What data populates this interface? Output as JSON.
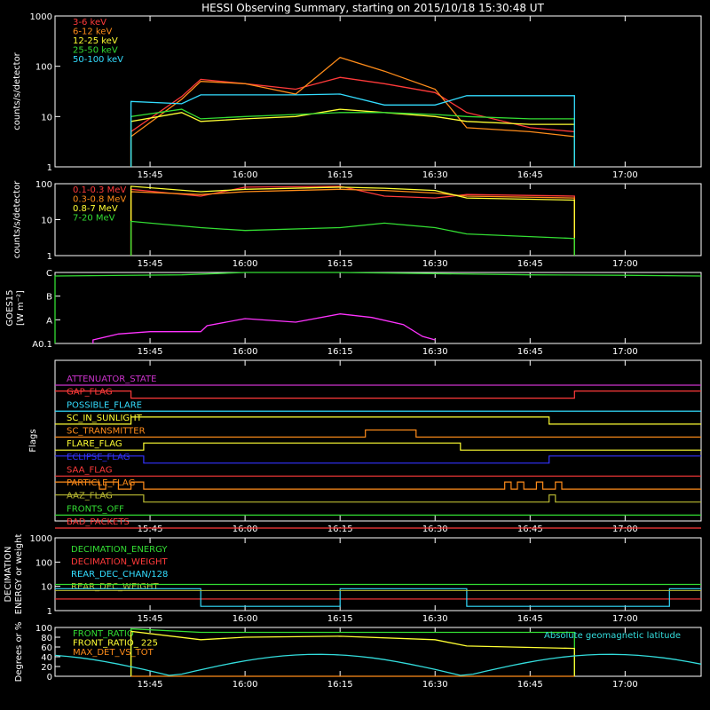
{
  "title": "HESSI Observing Summary, starting on 2015/10/18 15:30:48 UT",
  "chart_data": [
    {
      "id": "lightcurves",
      "type": "line",
      "ylabel": "counts/s/detector",
      "yscale": "log",
      "ylim": [
        1,
        1000
      ],
      "ytick_labels": [
        "1",
        "10",
        "100",
        "1000"
      ],
      "xtick_labels": [
        "15:45",
        "16:00",
        "16:15",
        "16:30",
        "16:45",
        "17:00"
      ],
      "series": [
        {
          "name": "3-6 keV",
          "color": "#ff3a3a",
          "x": [
            "15:42",
            "15:50",
            "15:53",
            "16:00",
            "16:08",
            "16:15",
            "16:22",
            "16:30",
            "16:35",
            "16:45",
            "16:52"
          ],
          "y": [
            5,
            25,
            55,
            45,
            35,
            60,
            45,
            30,
            12,
            6,
            5
          ]
        },
        {
          "name": "6-12 keV",
          "color": "#ff8c1a",
          "x": [
            "15:42",
            "15:50",
            "15:53",
            "16:00",
            "16:08",
            "16:15",
            "16:22",
            "16:30",
            "16:35",
            "16:45",
            "16:52"
          ],
          "y": [
            4,
            22,
            50,
            45,
            28,
            150,
            80,
            35,
            6,
            5,
            4
          ]
        },
        {
          "name": "12-25 keV",
          "color": "#ffff33",
          "x": [
            "15:42",
            "15:50",
            "15:53",
            "16:00",
            "16:08",
            "16:15",
            "16:22",
            "16:30",
            "16:35",
            "16:45",
            "16:52"
          ],
          "y": [
            8,
            12,
            8,
            9,
            10,
            14,
            12,
            10,
            8,
            7,
            7
          ]
        },
        {
          "name": "25-50 keV",
          "color": "#33dd33",
          "x": [
            "15:42",
            "15:50",
            "15:53",
            "16:00",
            "16:08",
            "16:15",
            "16:22",
            "16:30",
            "16:35",
            "16:45",
            "16:52"
          ],
          "y": [
            10,
            14,
            9,
            10,
            11,
            12,
            12,
            11,
            10,
            9,
            9
          ]
        },
        {
          "name": "50-100 keV",
          "color": "#33ddff",
          "x": [
            "15:42",
            "15:50",
            "15:53",
            "16:00",
            "16:08",
            "16:15",
            "16:22",
            "16:30",
            "16:35",
            "16:45",
            "16:52"
          ],
          "y": [
            20,
            18,
            27,
            27,
            27,
            28,
            17,
            17,
            26,
            26,
            26
          ]
        }
      ]
    },
    {
      "id": "mev",
      "type": "line",
      "ylabel": "counts/s/detector",
      "yscale": "log",
      "ylim": [
        1,
        100
      ],
      "ytick_labels": [
        "1",
        "10",
        "100"
      ],
      "xtick_labels": [
        "15:45",
        "16:00",
        "16:15",
        "16:30",
        "16:45",
        "17:00"
      ],
      "series": [
        {
          "name": "0.1-0.3 MeV",
          "color": "#ff3a3a",
          "x": [
            "15:42",
            "15:53",
            "16:00",
            "16:15",
            "16:22",
            "16:30",
            "16:35",
            "16:52"
          ],
          "y": [
            70,
            45,
            80,
            85,
            45,
            40,
            50,
            45
          ]
        },
        {
          "name": "0.3-0.8 MeV",
          "color": "#ff8c1a",
          "x": [
            "15:42",
            "15:53",
            "16:00",
            "16:15",
            "16:22",
            "16:30",
            "16:35",
            "16:52"
          ],
          "y": [
            60,
            50,
            60,
            70,
            65,
            55,
            45,
            40
          ]
        },
        {
          "name": "0.8-7 MeV",
          "color": "#ffff33",
          "x": [
            "15:42",
            "15:53",
            "16:00",
            "16:15",
            "16:22",
            "16:30",
            "16:35",
            "16:52"
          ],
          "y": [
            85,
            60,
            70,
            80,
            75,
            65,
            40,
            35
          ]
        },
        {
          "name": "7-20 MeV",
          "color": "#33dd33",
          "x": [
            "15:42",
            "15:53",
            "16:00",
            "16:15",
            "16:22",
            "16:30",
            "16:35",
            "16:52"
          ],
          "y": [
            9,
            6,
            5,
            6,
            8,
            6,
            4,
            3
          ]
        }
      ]
    },
    {
      "id": "goes",
      "type": "line",
      "ylabel": "GOES15",
      "ylabel2": "[W m⁻²]",
      "ytick_labels": [
        "A0.1",
        "A",
        "B",
        "C"
      ],
      "ylim": [
        0,
        3
      ],
      "xtick_labels": [
        "15:45",
        "16:00",
        "16:15",
        "16:30",
        "16:45",
        "17:00"
      ],
      "series": [
        {
          "name": "low channel",
          "color": "#33dd33",
          "x": [
            "15:30",
            "15:50",
            "16:00",
            "16:15",
            "16:30",
            "16:45",
            "17:00",
            "17:12"
          ],
          "y": [
            2.85,
            2.9,
            3.0,
            3.0,
            2.95,
            2.9,
            2.88,
            2.85
          ]
        },
        {
          "name": "high channel",
          "color": "#ff33ff",
          "x": [
            "15:36",
            "15:40",
            "15:45",
            "15:53",
            "15:54",
            "16:00",
            "16:08",
            "16:15",
            "16:20",
            "16:25",
            "16:28",
            "16:30"
          ],
          "y": [
            0.15,
            0.4,
            0.5,
            0.5,
            0.75,
            1.05,
            0.9,
            1.25,
            1.1,
            0.8,
            0.3,
            0.15
          ]
        }
      ]
    },
    {
      "id": "flags",
      "type": "line",
      "ylabel": "Flags",
      "xtick_labels": [
        "15:45",
        "16:00",
        "16:15",
        "16:30",
        "16:45",
        "17:00"
      ],
      "series": [
        {
          "name": "ATTENUATOR_STATE",
          "color": "#cc33cc"
        },
        {
          "name": "GAP_FLAG",
          "color": "#ff3a3a"
        },
        {
          "name": "POSSIBLE_FLARE",
          "color": "#33ddff"
        },
        {
          "name": "SC_IN_SUNLIGHT",
          "color": "#ffff33"
        },
        {
          "name": "SC_TRANSMITTER",
          "color": "#ff8c1a"
        },
        {
          "name": "FLARE_FLAG",
          "color": "#ffff33"
        },
        {
          "name": "ECLIPSE_FLAG",
          "color": "#3333ff"
        },
        {
          "name": "SAA_FLAG",
          "color": "#ff3a3a"
        },
        {
          "name": "PARTICLE_FLAG",
          "color": "#ff8c1a"
        },
        {
          "name": "AAZ_FLAG",
          "color": "#bbbb33"
        },
        {
          "name": "FRONTS_OFF",
          "color": "#33dd33"
        },
        {
          "name": "BAD_PACKETS",
          "color": "#ff3a3a"
        }
      ]
    },
    {
      "id": "decimation",
      "type": "line",
      "ylabel": "DECIMATION",
      "ylabel2": "ENERGY or weight",
      "yscale": "log",
      "ylim": [
        1,
        1000
      ],
      "ytick_labels": [
        "1",
        "10",
        "100",
        "1000"
      ],
      "xtick_labels": [
        "15:45",
        "16:00",
        "16:15",
        "16:30",
        "16:45",
        "17:00"
      ],
      "series": [
        {
          "name": "DECIMATION_ENERGY",
          "color": "#33dd33"
        },
        {
          "name": "DECIMATION_WEIGHT",
          "color": "#ff3a3a"
        },
        {
          "name": "REAR_DEC_CHAN/128",
          "color": "#33ddff"
        },
        {
          "name": "REAR_DEC_WEIGHT",
          "color": "#bbbb33"
        }
      ]
    },
    {
      "id": "ratios",
      "type": "line",
      "ylabel": "Degrees or %",
      "ylim": [
        0,
        100
      ],
      "ytick_labels": [
        "0",
        "20",
        "40",
        "60",
        "80",
        "100"
      ],
      "xtick_labels": [
        "15:45",
        "16:00",
        "16:15",
        "16:30",
        "16:45",
        "17:00"
      ],
      "annotation": "Absolute geomagnetic latitude",
      "series": [
        {
          "name": "FRONT_RATIO",
          "color": "#33dd33",
          "x": [
            "15:42",
            "15:53",
            "16:00",
            "16:15",
            "16:30",
            "16:35",
            "16:52"
          ],
          "y": [
            97,
            90,
            90,
            90,
            90,
            90,
            90
          ]
        },
        {
          "name": "FRONT_RATIO_ 225",
          "color": "#ffff33",
          "x": [
            "15:42",
            "15:53",
            "16:00",
            "16:15",
            "16:30",
            "16:35",
            "16:52"
          ],
          "y": [
            92,
            75,
            80,
            82,
            75,
            62,
            57
          ]
        },
        {
          "name": "MAX_DET_VS_TOT",
          "color": "#ff8c1a",
          "x": [
            "15:42",
            "16:52"
          ],
          "y": [
            0,
            0
          ]
        },
        {
          "name": "Absolute geomagnetic latitude",
          "color": "#33dddd"
        }
      ]
    }
  ]
}
